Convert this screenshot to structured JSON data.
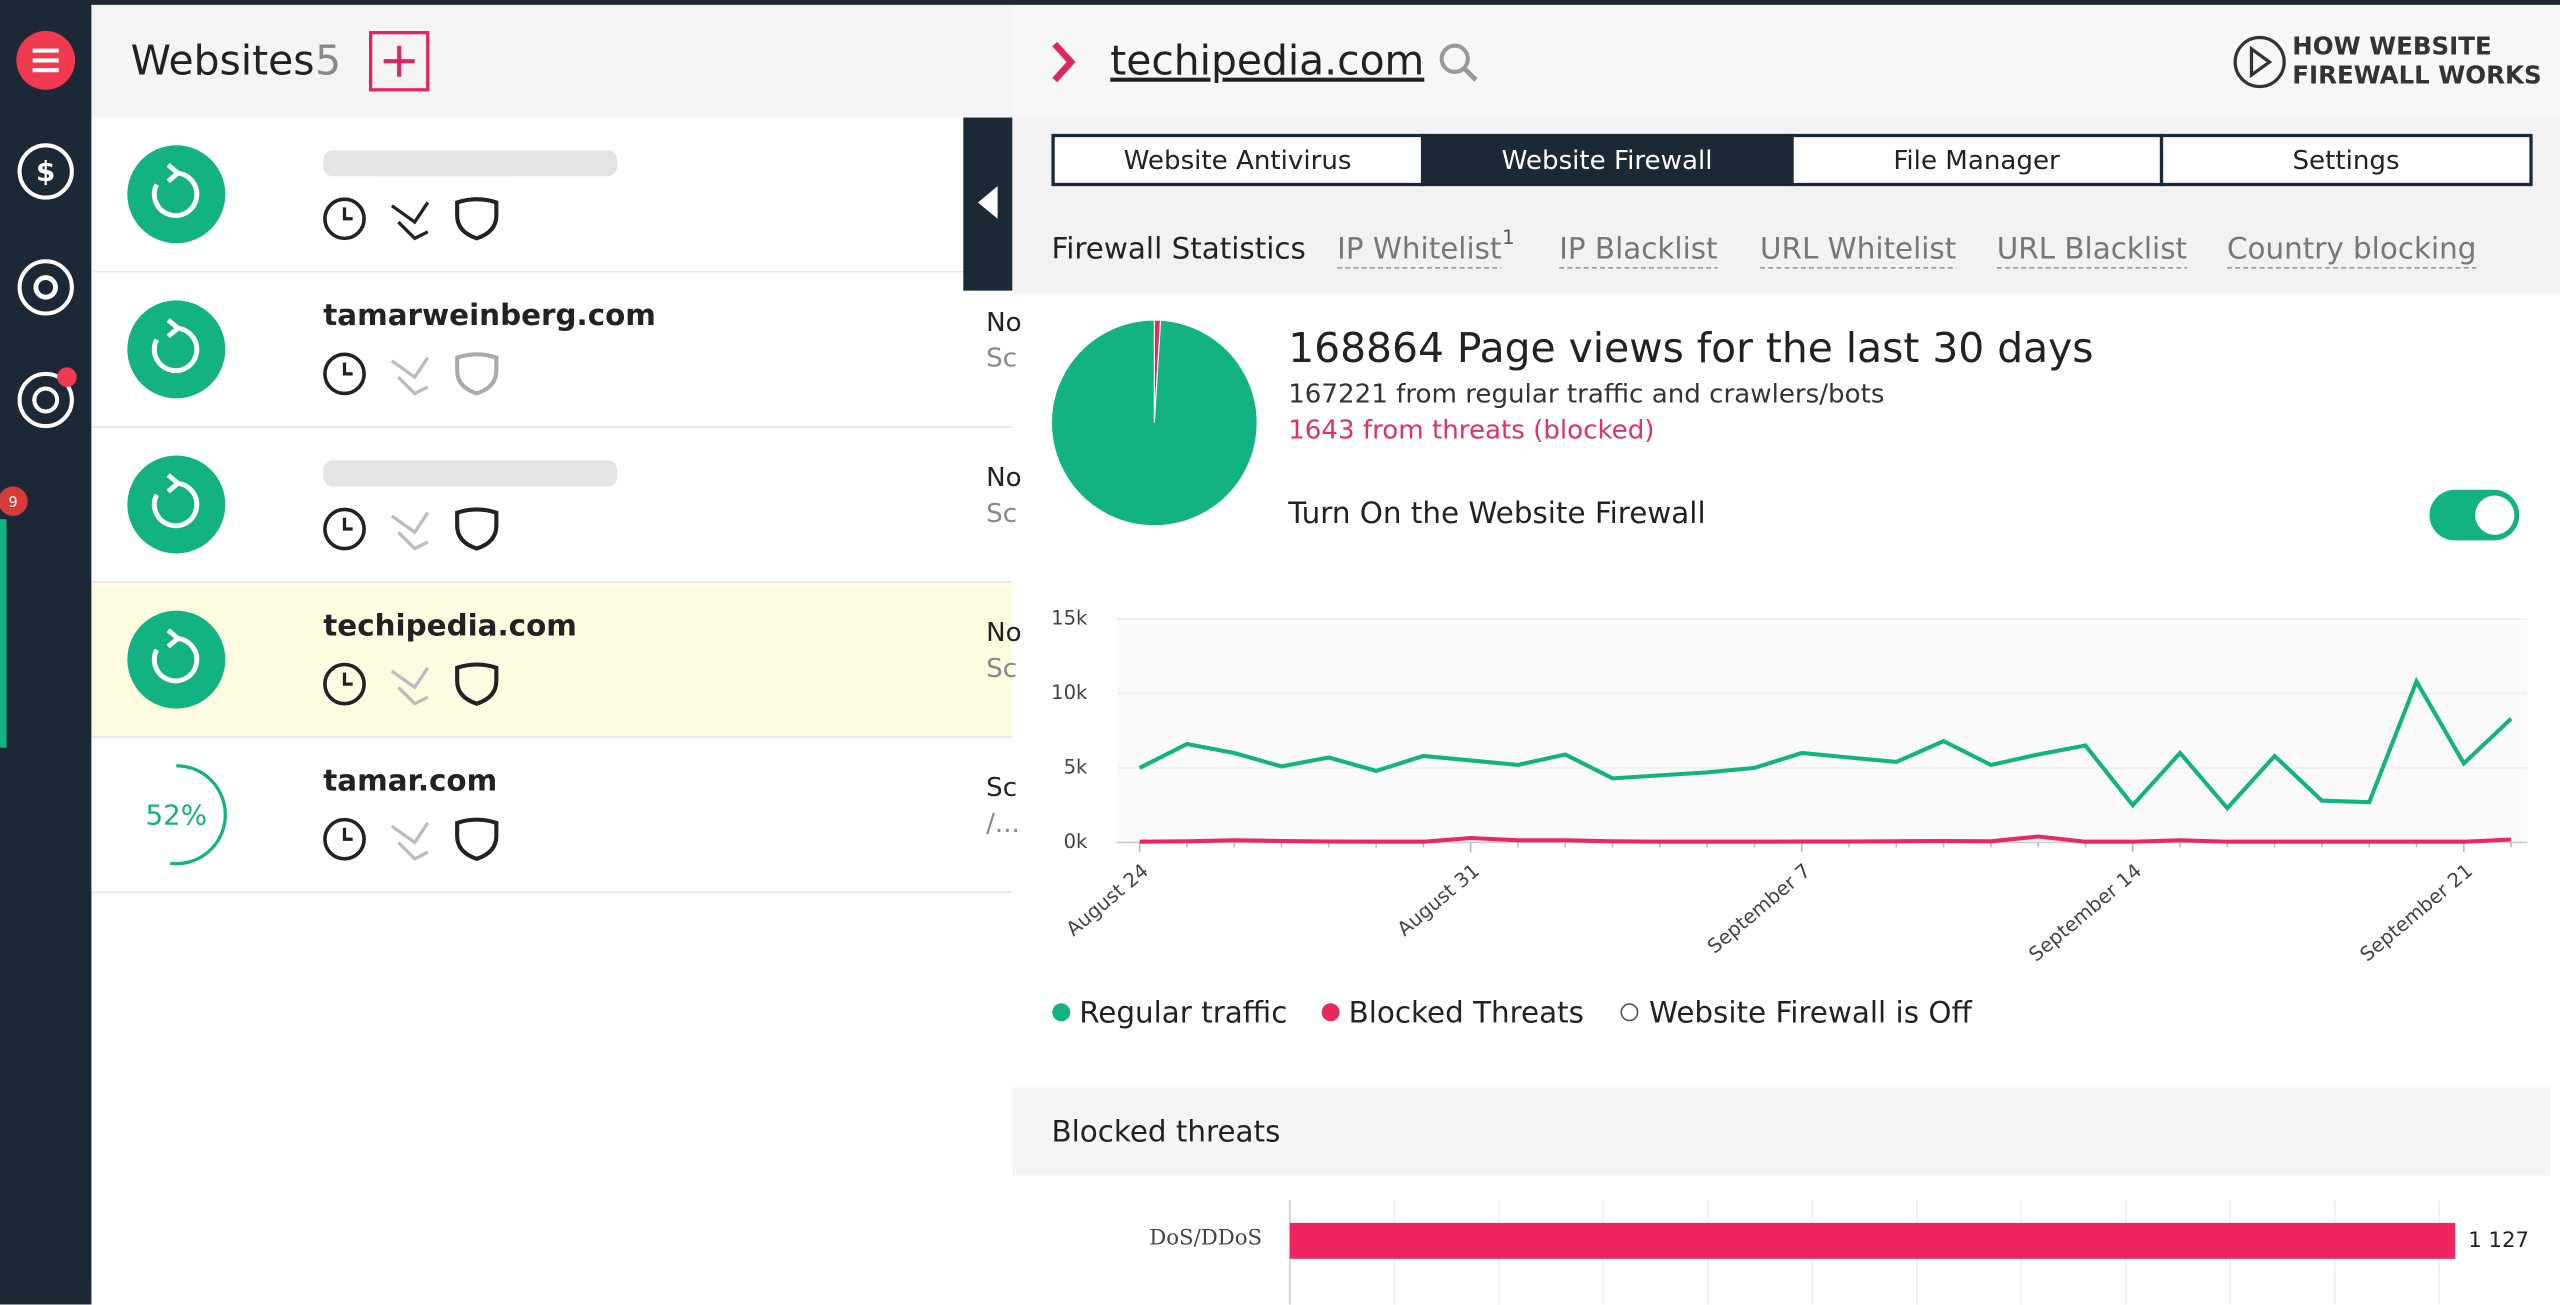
{
  "header": {
    "title": "Websites",
    "count": "5"
  },
  "sidebar": {
    "badge": "9"
  },
  "websites": [
    {
      "name": null,
      "status": null,
      "sub": null
    },
    {
      "name": "tamarweinberg.com",
      "status": "No",
      "sub": "Sc"
    },
    {
      "name": null,
      "status": "No",
      "sub": "Sc"
    },
    {
      "name": "techipedia.com",
      "status": "No",
      "sub": "Sc"
    },
    {
      "name": "tamar.com",
      "progress": "52%",
      "status": "Sc",
      "sub": "/..."
    }
  ],
  "detail": {
    "site": "techipedia.com",
    "help": [
      "HOW WEBSITE",
      "FIREWALL WORKS"
    ],
    "tabs": [
      "Website Antivirus",
      "Website Firewall",
      "File Manager",
      "Settings"
    ],
    "subtabs": [
      "Firewall Statistics",
      "IP Whitelist",
      "IP Blacklist",
      "URL Whitelist",
      "URL Blacklist",
      "Country blocking"
    ],
    "ip_whitelist_count": "1",
    "summary": [
      "168864 Page views for the last 30 days",
      "167221 from regular traffic and crawlers/bots",
      "1643 from threats (blocked)"
    ],
    "toggle_label": "Turn On the Website Firewall",
    "legend_off": "Website Firewall is Off"
  },
  "chart_data": [
    {
      "type": "pie",
      "values": [
        167221,
        1643
      ],
      "colors": [
        "#12b283",
        "#e8285f"
      ]
    },
    {
      "type": "line",
      "categories": [
        "August 24",
        null,
        null,
        null,
        null,
        null,
        null,
        "August 31",
        null,
        null,
        null,
        null,
        null,
        null,
        "September 7",
        null,
        null,
        null,
        null,
        null,
        null,
        "September 14",
        null,
        null,
        null,
        null,
        null,
        null,
        "September 21",
        null
      ],
      "series": [
        {
          "name": "Regular traffic",
          "color": "#12b283",
          "values": [
            5000,
            6600,
            6000,
            5100,
            5700,
            4800,
            5800,
            5500,
            5200,
            5900,
            4300,
            4500,
            4700,
            5000,
            6000,
            5700,
            5400,
            6800,
            5200,
            5900,
            6500,
            2500,
            6000,
            2300,
            5800,
            2800,
            2700,
            10800,
            5300,
            8300
          ]
        },
        {
          "name": "Blocked Threats",
          "color": "#e8285f",
          "values": [
            50,
            80,
            150,
            100,
            60,
            50,
            50,
            300,
            150,
            150,
            80,
            50,
            50,
            50,
            60,
            60,
            80,
            100,
            80,
            400,
            50,
            50,
            150,
            50,
            50,
            50,
            50,
            50,
            50,
            200
          ]
        }
      ],
      "ylim": [
        0,
        15000
      ],
      "yticks": [
        {
          "value": 0,
          "label": "0k"
        },
        {
          "value": 5000,
          "label": "5k"
        },
        {
          "value": 10000,
          "label": "10k"
        },
        {
          "value": 15000,
          "label": "15k"
        }
      ]
    },
    {
      "type": "hbar",
      "title": "Blocked threats",
      "categories": [
        "DoS/DDoS"
      ],
      "values": [
        1127
      ],
      "value_labels": [
        "1 127"
      ],
      "color": "#f0245e",
      "xlim": [
        0,
        1200
      ]
    }
  ]
}
